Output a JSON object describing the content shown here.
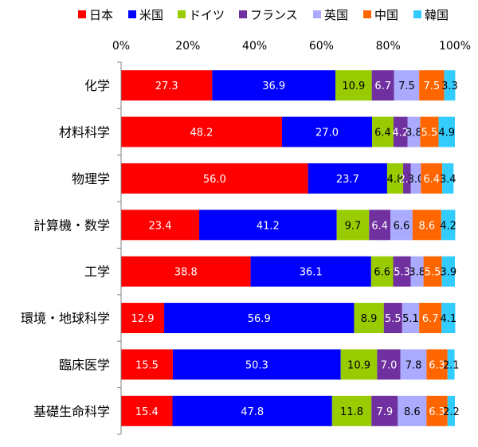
{
  "chart_data": {
    "type": "bar",
    "orientation": "horizontal",
    "stacked": "percent",
    "legend_position": "top",
    "grid": false,
    "xlim": [
      0,
      100
    ],
    "x_ticks": [
      "0%",
      "20%",
      "40%",
      "60%",
      "80%",
      "100%"
    ],
    "categories": [
      "化学",
      "材料科学",
      "物理学",
      "計算機・数学",
      "工学",
      "環境・地球科学",
      "臨床医学",
      "基礎生命科学"
    ],
    "series": [
      {
        "name": "日本",
        "color": "#ff0000",
        "label_color": "#ffffff",
        "values": [
          27.3,
          48.2,
          56.0,
          23.4,
          38.8,
          12.9,
          15.5,
          15.4
        ],
        "labels": [
          "27.3",
          "48.2",
          "56.0",
          "23.4",
          "38.8",
          "12.9",
          "15.5",
          "15.4"
        ]
      },
      {
        "name": "米国",
        "color": "#0000ff",
        "label_color": "#ffffff",
        "values": [
          36.9,
          27.0,
          23.7,
          41.2,
          36.1,
          56.9,
          50.3,
          47.8
        ],
        "labels": [
          "36.9",
          "27.0",
          "23.7",
          "41.2",
          "36.1",
          "56.9",
          "50.3",
          "47.8"
        ]
      },
      {
        "name": "ドイツ",
        "color": "#99cc00",
        "label_color": "#000000",
        "values": [
          10.9,
          6.4,
          4.8,
          9.7,
          6.6,
          8.9,
          10.9,
          11.8
        ],
        "labels": [
          "10.9",
          "6.4",
          "4.8",
          "9.7",
          "6.6",
          "8.9",
          "10.9",
          "11.8"
        ]
      },
      {
        "name": "フランス",
        "color": "#7030a0",
        "label_color": "#ffffff",
        "values": [
          6.7,
          4.2,
          2.3,
          6.4,
          5.3,
          5.5,
          7.0,
          7.9
        ],
        "labels": [
          "6.7",
          "4.2",
          "2.3",
          "6.4",
          "5.3",
          "5.5",
          "7.0",
          "7.9"
        ]
      },
      {
        "name": "英国",
        "color": "#aaaaff",
        "label_color": "#000000",
        "values": [
          7.5,
          3.8,
          3.0,
          6.6,
          3.8,
          5.1,
          7.8,
          8.6
        ],
        "labels": [
          "7.5",
          "3.8",
          "3.0",
          "6.6",
          "3.8",
          "5.1",
          "7.8",
          "8.6"
        ]
      },
      {
        "name": "中国",
        "color": "#ff6600",
        "label_color": "#ffffff",
        "values": [
          7.5,
          5.5,
          6.4,
          8.6,
          5.5,
          6.7,
          6.3,
          6.3
        ],
        "labels": [
          "7.5",
          "5.5",
          "6.4",
          "8.6",
          "5.5",
          "6.7",
          "6.3",
          "6.3"
        ]
      },
      {
        "name": "韓国",
        "color": "#33ccff",
        "label_color": "#000000",
        "values": [
          3.3,
          4.9,
          3.4,
          4.2,
          3.9,
          4.1,
          2.1,
          2.2
        ],
        "labels": [
          "3.3",
          "4.9",
          "3.4",
          "4.2",
          "3.9",
          "4.1",
          "2.1",
          "2.2"
        ]
      }
    ]
  }
}
